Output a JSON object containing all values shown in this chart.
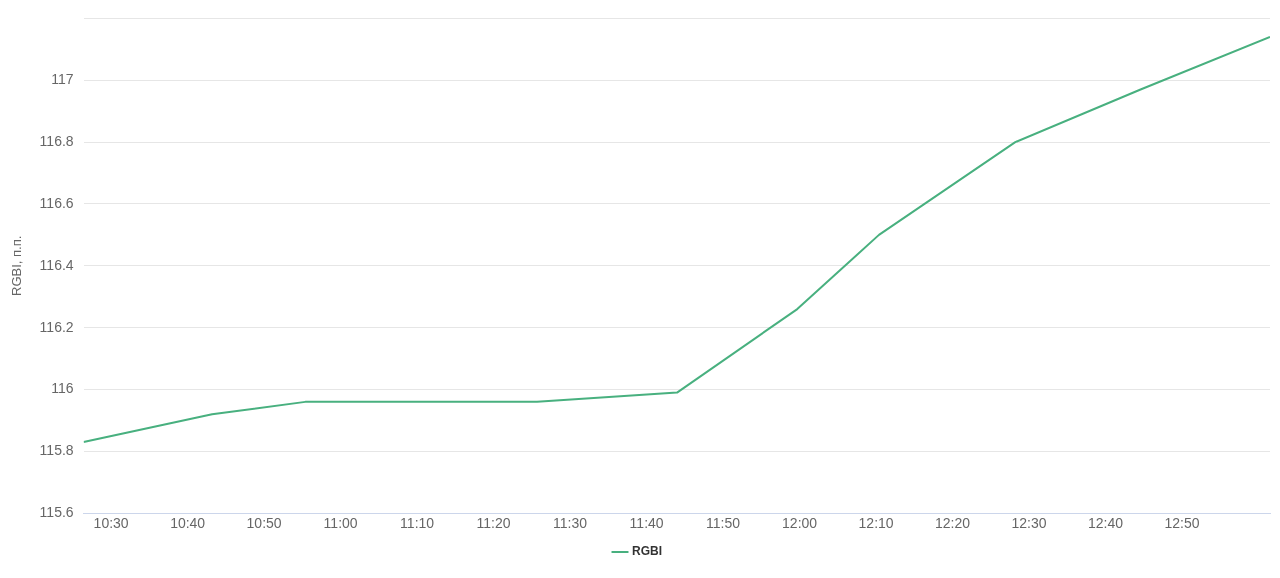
{
  "chart_data": {
    "type": "line",
    "ylabel": "RGBI, п.п.",
    "x": [
      10.44,
      10.72,
      10.923,
      11.118,
      11.428,
      11.733,
      11.995,
      12.173,
      12.47,
      12.743,
      13.025
    ],
    "xlim": [
      10.44,
      13.025
    ],
    "xticks": [
      {
        "value": 10.5,
        "label": "10:30"
      },
      {
        "value": 10.6667,
        "label": "10:40"
      },
      {
        "value": 10.8333,
        "label": "10:50"
      },
      {
        "value": 11,
        "label": "11:00"
      },
      {
        "value": 11.1667,
        "label": "11:10"
      },
      {
        "value": 11.3333,
        "label": "11:20"
      },
      {
        "value": 11.5,
        "label": "11:30"
      },
      {
        "value": 11.6667,
        "label": "11:40"
      },
      {
        "value": 11.8333,
        "label": "11:50"
      },
      {
        "value": 12,
        "label": "12:00"
      },
      {
        "value": 12.1667,
        "label": "12:10"
      },
      {
        "value": 12.3333,
        "label": "12:20"
      },
      {
        "value": 12.5,
        "label": "12:30"
      },
      {
        "value": 12.6667,
        "label": "12:40"
      },
      {
        "value": 12.8333,
        "label": "12:50"
      }
    ],
    "ylim": [
      115.6,
      117.2
    ],
    "yticks": [
      115.6,
      115.8,
      116,
      116.2,
      116.4,
      116.6,
      116.8,
      117,
      {
        "value": 117.2,
        "label": null
      }
    ],
    "series": [
      {
        "name": "RGBI",
        "color": "#48b07f",
        "values": [
          115.83,
          115.92,
          115.96,
          115.96,
          115.96,
          115.99,
          116.26,
          116.5,
          116.8,
          116.97,
          117.14
        ]
      }
    ],
    "grid": "y",
    "legend": "bottom",
    "marker": "none",
    "line_style": "solid"
  }
}
